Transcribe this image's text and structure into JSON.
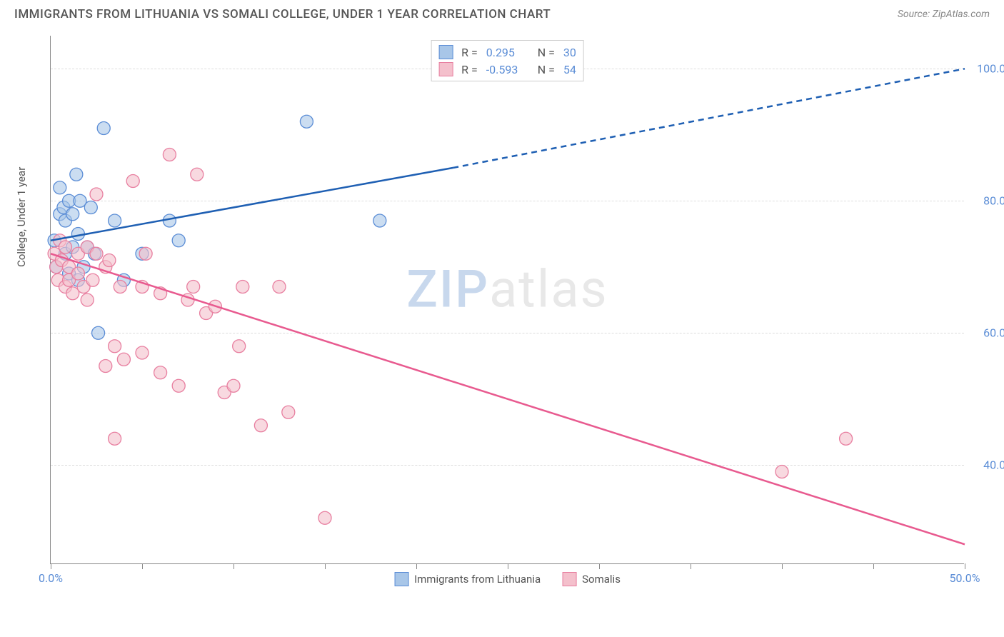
{
  "title": "IMMIGRANTS FROM LITHUANIA VS SOMALI COLLEGE, UNDER 1 YEAR CORRELATION CHART",
  "source": "Source: ZipAtlas.com",
  "y_axis_label": "College, Under 1 year",
  "watermark": {
    "part1": "ZIP",
    "part2": "atlas"
  },
  "chart": {
    "type": "scatter",
    "xlim": [
      0,
      50
    ],
    "ylim": [
      25,
      105
    ],
    "x_ticks": [
      0,
      5,
      10,
      15,
      20,
      25,
      30,
      35,
      40,
      45,
      50
    ],
    "x_tick_labels": {
      "0": "0.0%",
      "50": "50.0%"
    },
    "y_gridlines": [
      40,
      60,
      80,
      100
    ],
    "y_tick_labels": {
      "40": "40.0%",
      "60": "60.0%",
      "80": "80.0%",
      "100": "100.0%"
    },
    "background_color": "#ffffff",
    "grid_color": "#dddddd",
    "axis_color": "#888888",
    "tick_label_color": "#5b8dd6",
    "marker_radius": 9,
    "marker_opacity": 0.6,
    "line_width": 2.5
  },
  "series": [
    {
      "name": "Immigrants from Lithuania",
      "color_fill": "#a8c6e8",
      "color_stroke": "#5b8dd6",
      "R": "0.295",
      "N": "30",
      "trend": {
        "x1": 0,
        "y1": 74,
        "x2_solid": 22,
        "y2_solid": 85,
        "x2_dash": 50,
        "y2_dash": 100,
        "color": "#1e5fb3"
      },
      "points": [
        [
          0.2,
          74
        ],
        [
          0.3,
          70
        ],
        [
          0.5,
          78
        ],
        [
          0.5,
          82
        ],
        [
          0.7,
          79
        ],
        [
          0.8,
          77
        ],
        [
          0.8,
          72
        ],
        [
          1.0,
          80
        ],
        [
          1.0,
          69
        ],
        [
          1.2,
          73
        ],
        [
          1.2,
          78
        ],
        [
          1.4,
          84
        ],
        [
          1.5,
          75
        ],
        [
          1.5,
          68
        ],
        [
          1.6,
          80
        ],
        [
          1.8,
          70
        ],
        [
          2.0,
          73
        ],
        [
          2.2,
          79
        ],
        [
          2.4,
          72
        ],
        [
          2.6,
          60
        ],
        [
          2.9,
          91
        ],
        [
          3.5,
          77
        ],
        [
          4.0,
          68
        ],
        [
          5.0,
          72
        ],
        [
          6.5,
          77
        ],
        [
          7.0,
          74
        ],
        [
          14.0,
          92
        ],
        [
          18.0,
          77
        ]
      ]
    },
    {
      "name": "Somalis",
      "color_fill": "#f4c0cc",
      "color_stroke": "#e87fa0",
      "R": "-0.593",
      "N": "54",
      "trend": {
        "x1": 0,
        "y1": 72,
        "x2_solid": 50,
        "y2_solid": 28,
        "color": "#e85a8f"
      },
      "points": [
        [
          0.2,
          72
        ],
        [
          0.3,
          70
        ],
        [
          0.4,
          68
        ],
        [
          0.5,
          74
        ],
        [
          0.6,
          71
        ],
        [
          0.8,
          67
        ],
        [
          0.8,
          73
        ],
        [
          1.0,
          68
        ],
        [
          1.0,
          70
        ],
        [
          1.2,
          66
        ],
        [
          1.5,
          69
        ],
        [
          1.5,
          72
        ],
        [
          1.8,
          67
        ],
        [
          2.0,
          73
        ],
        [
          2.0,
          65
        ],
        [
          2.3,
          68
        ],
        [
          2.5,
          81
        ],
        [
          2.5,
          72
        ],
        [
          3.0,
          55
        ],
        [
          3.0,
          70
        ],
        [
          3.2,
          71
        ],
        [
          3.5,
          44
        ],
        [
          3.5,
          58
        ],
        [
          3.8,
          67
        ],
        [
          4.0,
          56
        ],
        [
          4.5,
          83
        ],
        [
          5.0,
          57
        ],
        [
          5.0,
          67
        ],
        [
          5.2,
          72
        ],
        [
          6.0,
          54
        ],
        [
          6.0,
          66
        ],
        [
          6.5,
          87
        ],
        [
          7.0,
          52
        ],
        [
          7.5,
          65
        ],
        [
          7.8,
          67
        ],
        [
          8.0,
          84
        ],
        [
          8.5,
          63
        ],
        [
          9.0,
          64
        ],
        [
          9.5,
          51
        ],
        [
          10.0,
          52
        ],
        [
          10.3,
          58
        ],
        [
          10.5,
          67
        ],
        [
          11.5,
          46
        ],
        [
          12.5,
          67
        ],
        [
          13.0,
          48
        ],
        [
          15.0,
          32
        ],
        [
          40.0,
          39
        ],
        [
          43.5,
          44
        ]
      ]
    }
  ],
  "legend_top": {
    "R_label": "R =",
    "N_label": "N ="
  },
  "legend_bottom": [
    {
      "label": "Immigrants from Lithuania",
      "fill": "#a8c6e8",
      "stroke": "#5b8dd6"
    },
    {
      "label": "Somalis",
      "fill": "#f4c0cc",
      "stroke": "#e87fa0"
    }
  ]
}
